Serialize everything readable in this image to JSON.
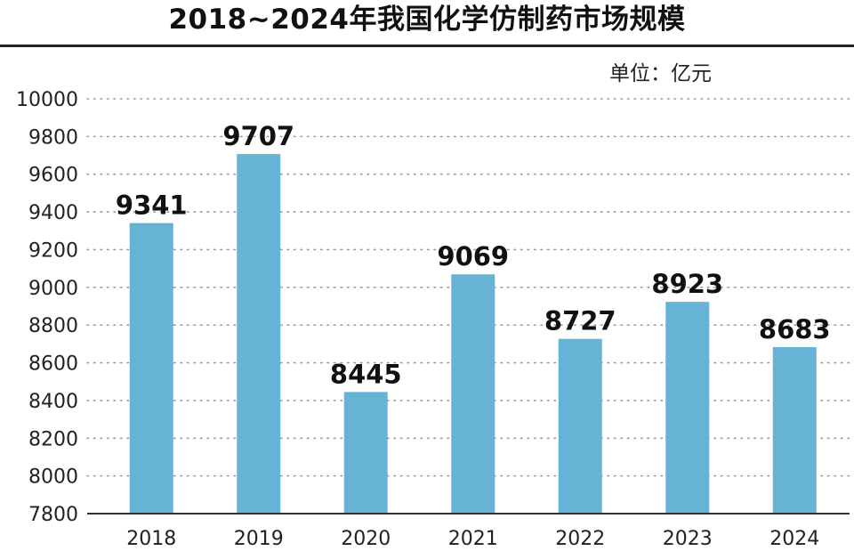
{
  "chart_data": {
    "type": "bar",
    "title": "2018~2024年我国化学仿制药市场规模",
    "unit_label": "单位：亿元",
    "categories": [
      "2018",
      "2019",
      "2020",
      "2021",
      "2022",
      "2023",
      "2024"
    ],
    "values": [
      9341,
      9707,
      8445,
      9069,
      8727,
      8923,
      8683
    ],
    "data_labels": [
      "9341",
      "9707",
      "8445",
      "9069",
      "8727",
      "8923",
      "8683"
    ],
    "ylim": [
      7800,
      10000
    ],
    "yticks": [
      7800,
      8000,
      8200,
      8400,
      8600,
      8800,
      9000,
      9200,
      9400,
      9600,
      9800,
      10000
    ],
    "xlabel": "",
    "ylabel": "",
    "grid": true,
    "grid_style": "dotted",
    "bar_color": "#66b3d6",
    "legend": "none"
  }
}
